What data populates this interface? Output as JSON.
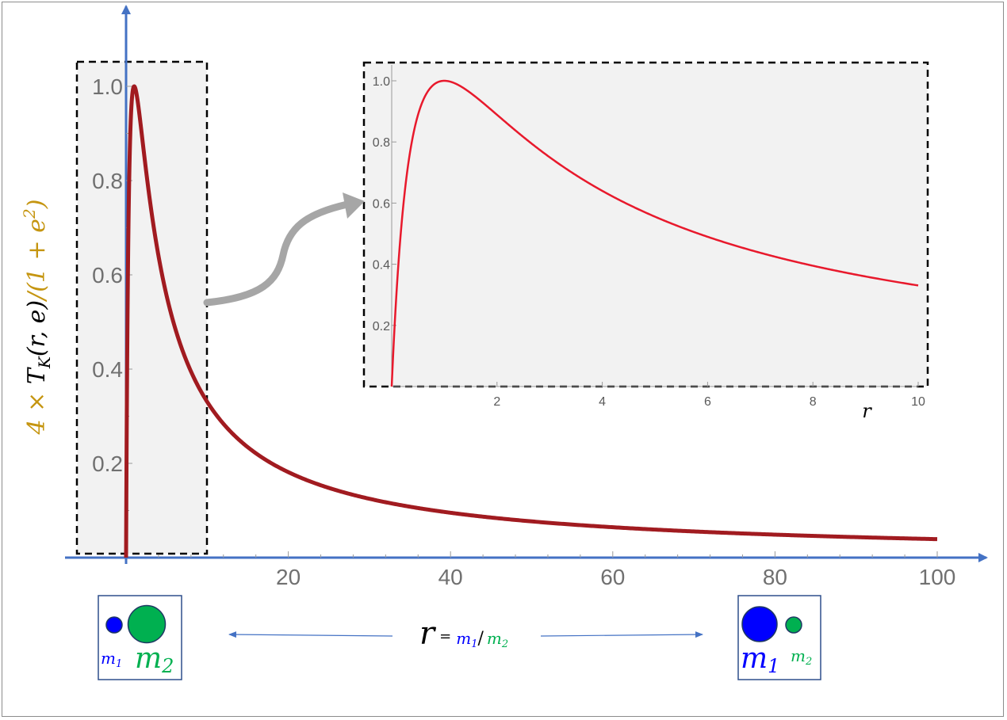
{
  "chart_data": [
    {
      "type": "line",
      "title": "",
      "xlabel": "r",
      "ylabel": "4 × T_K(r, e)/(1 + e²)",
      "ylabel_parts": {
        "prefix": "4 × ",
        "T": "T",
        "sub": "K",
        "args": "(r, e)",
        "slash": "/",
        "denom": "(1 + e",
        "sup": "2",
        "close": ")"
      },
      "xlim": [
        0,
        100
      ],
      "ylim": [
        0,
        1.0
      ],
      "x_ticks": [
        20,
        40,
        60,
        80,
        100
      ],
      "y_ticks": [
        0.2,
        0.4,
        0.6,
        0.8,
        1.0
      ],
      "x_tick_labels": [
        "20",
        "40",
        "60",
        "80",
        "100"
      ],
      "y_tick_labels": [
        "0.2",
        "0.4",
        "0.6",
        "0.8",
        "1.0"
      ],
      "series": [
        {
          "function": "4r/(1+r)^2",
          "color": "#a11b20"
        }
      ],
      "highlight_region": {
        "x_range": [
          -3,
          10
        ],
        "style": "dashed box",
        "fill": "#f2f2f2"
      }
    },
    {
      "type": "line",
      "title": "",
      "xlabel": "r",
      "xlim": [
        0,
        10
      ],
      "ylim": [
        0,
        1.0
      ],
      "x_ticks": [
        2,
        4,
        6,
        8,
        10
      ],
      "y_ticks": [
        0.2,
        0.4,
        0.6,
        0.8,
        1.0
      ],
      "x_tick_labels": [
        "2",
        "4",
        "6",
        "8",
        "10"
      ],
      "y_tick_labels": [
        "0.2",
        "0.4",
        "0.6",
        "0.8",
        "1.0"
      ],
      "series": [
        {
          "function": "4r/(1+r)^2",
          "color": "#e8192c"
        }
      ]
    }
  ],
  "annotations": {
    "x_formula": {
      "r": "r",
      "eq": "=",
      "m1": "m",
      "m1_sub": "1",
      "slash": "/",
      "m2": "m",
      "m2_sub": "2"
    },
    "left_box": {
      "m1": "m",
      "m1_sub": "1",
      "m2": "m",
      "m2_sub": "2"
    },
    "right_box": {
      "m1": "m",
      "m1_sub": "1",
      "m2": "m",
      "m2_sub": "2"
    }
  },
  "colors": {
    "axis": "#4472c4",
    "main_curve": "#a11b20",
    "inset_curve": "#e8192c",
    "ylabel": "#c59510",
    "m1": "#0000ff",
    "m2": "#00b050",
    "region_fill": "#f2f2f2",
    "connector_arrow": "#a6a6a6"
  }
}
